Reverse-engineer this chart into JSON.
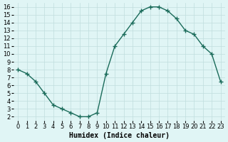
{
  "x": [
    0,
    1,
    2,
    3,
    4,
    5,
    6,
    7,
    8,
    9,
    10,
    11,
    12,
    13,
    14,
    15,
    16,
    17,
    18,
    19,
    20,
    21,
    22,
    23
  ],
  "y": [
    8,
    7.5,
    6.5,
    5,
    3.5,
    3,
    2.5,
    2,
    2,
    2.5,
    7.5,
    11,
    12.5,
    14,
    15.5,
    16,
    16,
    15.5,
    14.5,
    13,
    12.5,
    11,
    10,
    6.5
  ],
  "xlabel": "Humidex (Indice chaleur)",
  "ylabel": "",
  "xlim": [
    -0.5,
    23.5
  ],
  "ylim": [
    1.5,
    16.5
  ],
  "yticks": [
    2,
    3,
    4,
    5,
    6,
    7,
    8,
    9,
    10,
    11,
    12,
    13,
    14,
    15,
    16
  ],
  "xticks": [
    0,
    1,
    2,
    3,
    4,
    5,
    6,
    7,
    8,
    9,
    10,
    11,
    12,
    13,
    14,
    15,
    16,
    17,
    18,
    19,
    20,
    21,
    22,
    23
  ],
  "line_color": "#1a6b5a",
  "marker": "+",
  "bg_color": "#e0f5f5",
  "grid_color": "#c0dede",
  "title_fontsize": 7,
  "tick_fontsize": 6,
  "xlabel_fontsize": 7
}
